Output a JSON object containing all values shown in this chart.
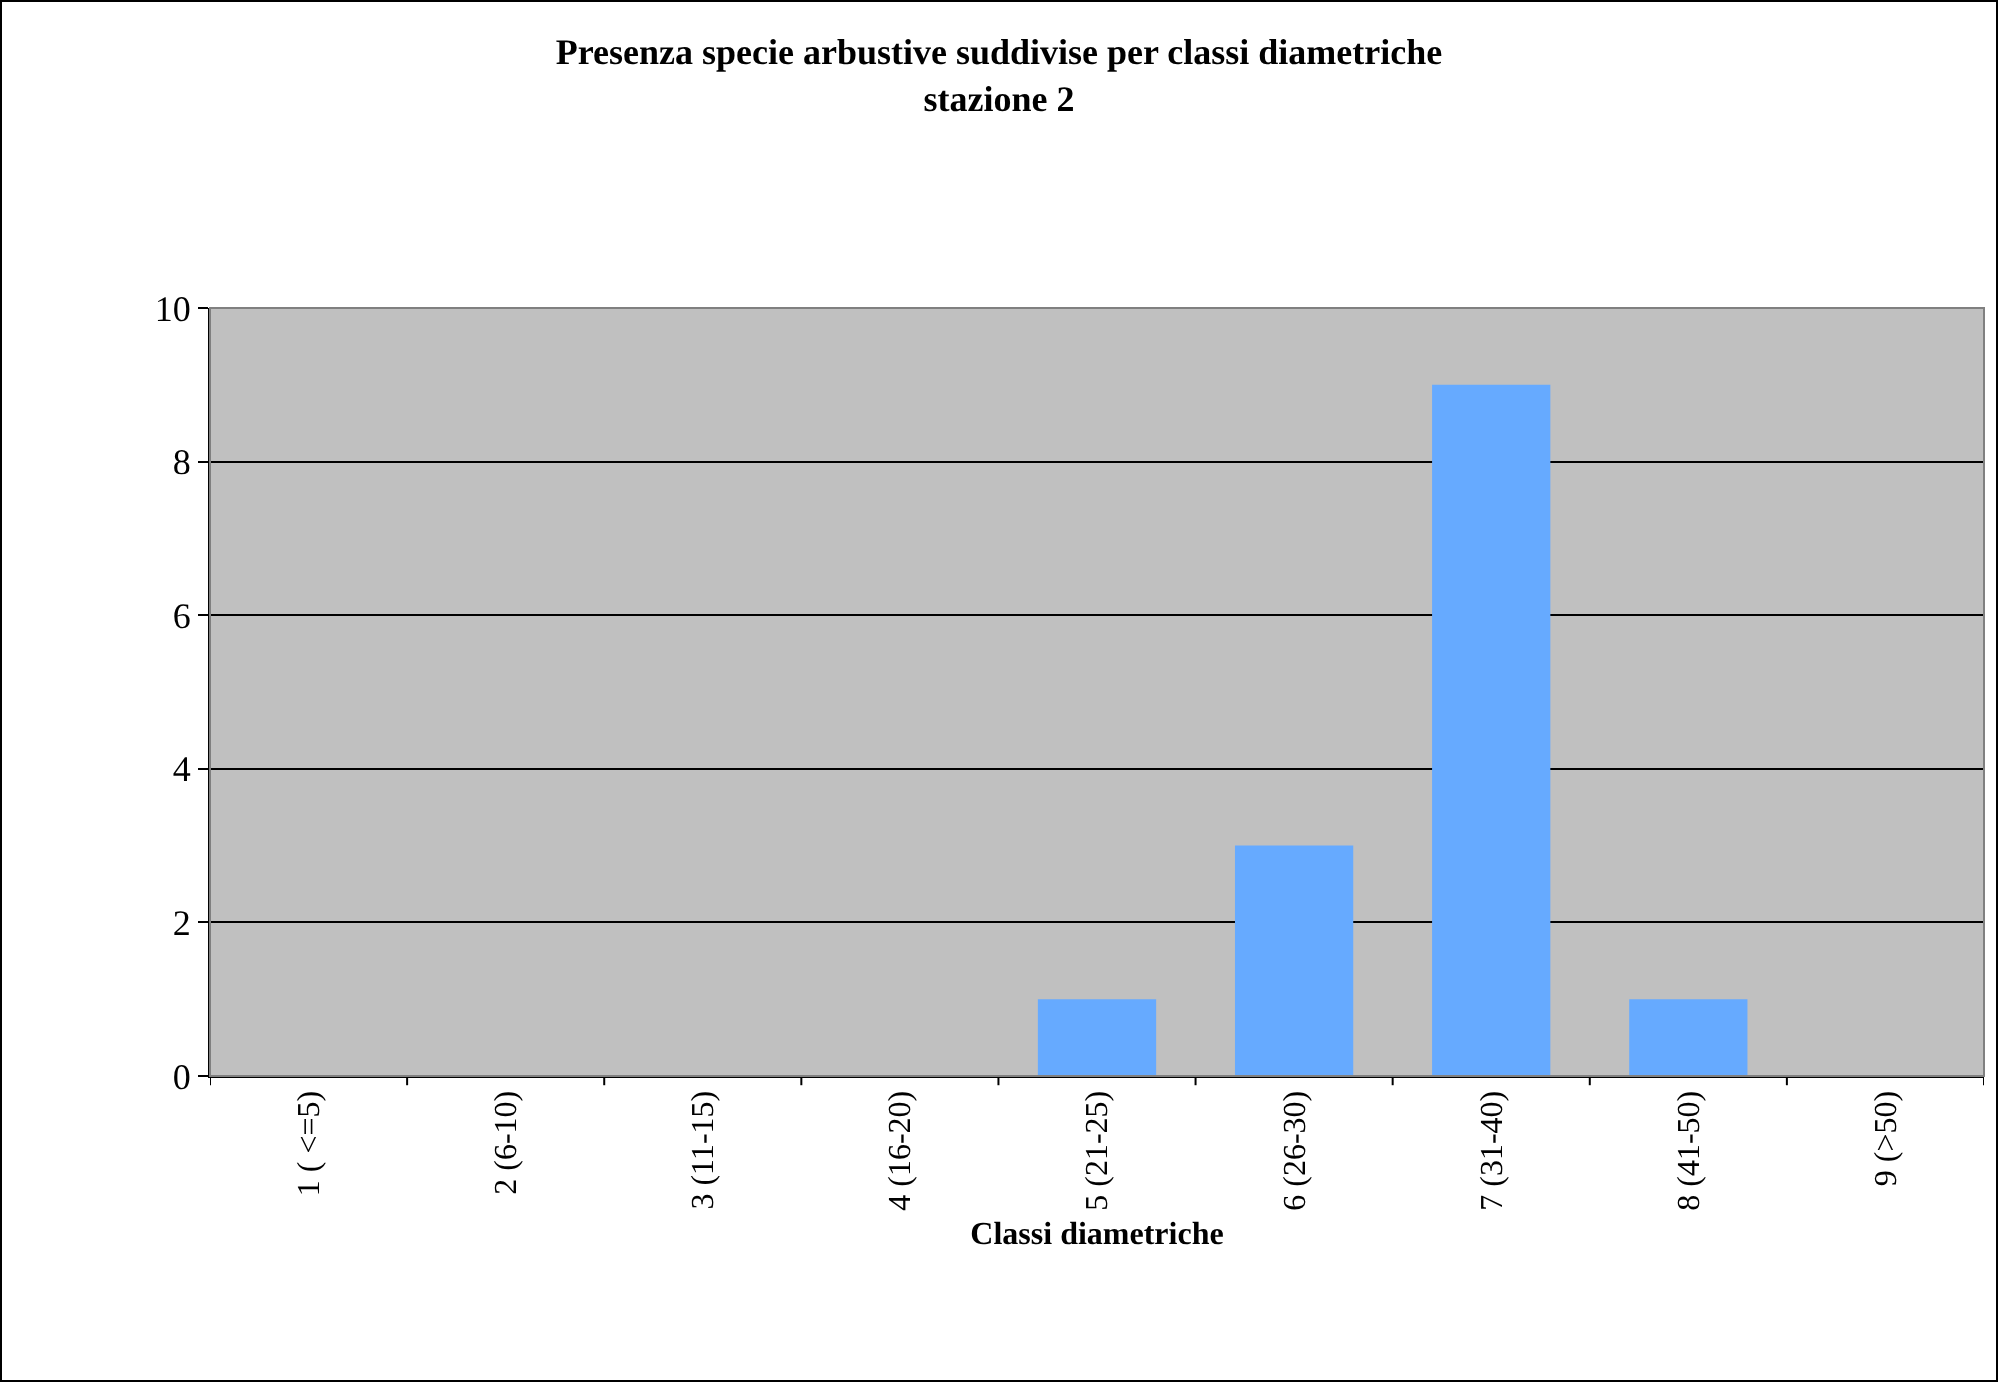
{
  "chart_data": {
    "type": "bar",
    "title": "Presenza specie arbustive suddivise per classi diametriche\nstazione 2",
    "xlabel": "Classi diametriche",
    "categories": [
      "1 ( <=5)",
      "2 (6-10)",
      "3 (11-15)",
      "4 (16-20)",
      "5 (21-25)",
      "6 (26-30)",
      "7 (31-40)",
      "8 (41-50)",
      "9 (>50)"
    ],
    "values": [
      0,
      0,
      0,
      0,
      1,
      3,
      9,
      1,
      0
    ],
    "color": "#66aaff",
    "ylim": [
      0,
      10
    ],
    "yticks": [
      0,
      2,
      4,
      6,
      8,
      10
    ],
    "grid": "y"
  }
}
